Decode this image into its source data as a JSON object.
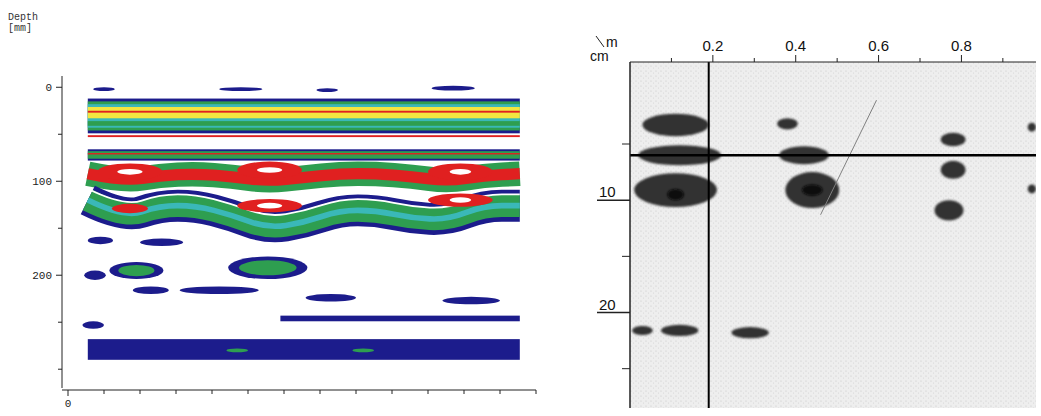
{
  "chart_data": [
    {
      "type": "radargram",
      "y_label": "Depth [mm]",
      "xlim": [
        0,
        13
      ],
      "xticks": [
        0
      ],
      "x_minor_ticks": [
        1,
        2,
        3,
        4,
        5,
        6,
        7,
        8,
        9,
        10,
        11,
        12,
        13
      ],
      "ylim": [
        -12,
        320
      ],
      "yticks": [
        0,
        100,
        200
      ],
      "y_minor_ticks": [
        50,
        150,
        250,
        300
      ],
      "bands": [
        {
          "x0": 0.55,
          "x1": 12.55,
          "top": 12,
          "bottom": 49,
          "color": "#1c1c8c"
        },
        {
          "x0": 0.55,
          "x1": 12.55,
          "top": 15,
          "bottom": 46,
          "color": "#2e9e50"
        },
        {
          "x0": 0.55,
          "x1": 12.55,
          "top": 18,
          "bottom": 43,
          "color": "#3ab8b8"
        },
        {
          "x0": 0.55,
          "x1": 12.55,
          "top": 21,
          "bottom": 33,
          "color": "#f2e640"
        },
        {
          "x0": 0.55,
          "x1": 12.55,
          "top": 25,
          "bottom": 27,
          "color": "#e02020"
        },
        {
          "x0": 0.55,
          "x1": 12.55,
          "top": 36,
          "bottom": 41,
          "color": "#2e9e50"
        },
        {
          "x0": 0.55,
          "x1": 12.55,
          "top": 51,
          "bottom": 53,
          "color": "#e02020"
        },
        {
          "x0": 0.55,
          "x1": 12.55,
          "top": 66,
          "bottom": 78,
          "color": "#1c1c8c"
        },
        {
          "x0": 0.55,
          "x1": 12.55,
          "top": 68,
          "bottom": 76,
          "color": "#2e9e50"
        },
        {
          "x0": 0.55,
          "x1": 12.55,
          "top": 70,
          "bottom": 71.5,
          "color": "#e02020"
        },
        {
          "x0": 5.9,
          "x1": 12.55,
          "top": 243,
          "bottom": 249,
          "color": "#1c1c8c"
        },
        {
          "x0": 0.55,
          "x1": 12.55,
          "top": 268,
          "bottom": 290,
          "color": "#1c1c8c"
        }
      ],
      "horizons": [
        {
          "x": [
            0.55,
            1.55,
            2.55,
            3.55,
            4.55,
            5.55,
            6.55,
            7.55,
            8.55,
            9.55,
            10.55,
            11.55,
            12.55
          ],
          "depth": [
            92,
            100,
            94,
            92,
            95,
            100,
            96,
            92,
            92,
            95,
            100,
            94,
            92
          ],
          "thickness": 26,
          "color": "#2e9e50"
        },
        {
          "x": [
            0.55,
            1.55,
            2.55,
            3.55,
            4.55,
            5.55,
            6.55,
            7.55,
            8.55,
            9.55,
            10.55,
            11.55,
            12.55
          ],
          "depth": [
            120,
            139,
            126,
            126,
            136,
            150,
            144,
            131,
            131,
            139,
            141,
            126,
            126
          ],
          "thickness": 34,
          "color": "#1c1c8c"
        },
        {
          "x": [
            0.55,
            1.55,
            2.55,
            3.55,
            4.55,
            5.55,
            6.55,
            7.55,
            8.55,
            9.55,
            10.55,
            11.55,
            12.55
          ],
          "depth": [
            120,
            139,
            126,
            126,
            136,
            150,
            144,
            131,
            131,
            139,
            141,
            126,
            126
          ],
          "thickness": 24,
          "color": "#2e9e50"
        },
        {
          "x": [
            0.55,
            1.55,
            2.55,
            3.55,
            4.55,
            5.55,
            6.55,
            7.55,
            8.55,
            9.55,
            10.55,
            11.55,
            12.55
          ],
          "depth": [
            120,
            139,
            126,
            126,
            136,
            150,
            144,
            131,
            131,
            139,
            141,
            126,
            126
          ],
          "thickness": 6,
          "color": "#3ab8b8"
        },
        {
          "x": [
            0.55,
            1.55,
            2.55,
            3.55,
            4.55,
            5.55,
            6.55,
            7.55,
            8.55,
            9.55,
            10.55,
            11.55,
            12.55
          ],
          "depth": [
            92,
            100,
            94,
            92,
            95,
            100,
            96,
            92,
            92,
            95,
            100,
            94,
            92
          ],
          "thickness": 12,
          "color": "#e02020"
        },
        {
          "x": [
            0.55,
            1.55,
            2.55,
            3.55,
            4.55,
            5.55,
            6.55,
            7.55,
            8.55,
            9.55,
            10.55,
            11.55,
            12.55
          ],
          "depth": [
            108,
            127,
            114,
            114,
            124,
            138,
            132,
            119,
            119,
            127,
            129,
            114,
            114
          ],
          "thickness": 2,
          "color": "#ffffff"
        }
      ],
      "reflections": [
        {
          "x": 1.72,
          "depth": 90,
          "rx": 0.9,
          "ry": 9,
          "color": "#e02020"
        },
        {
          "x": 5.6,
          "depth": 88,
          "rx": 0.9,
          "ry": 9,
          "color": "#e02020"
        },
        {
          "x": 10.9,
          "depth": 90,
          "rx": 0.9,
          "ry": 9,
          "color": "#e02020"
        },
        {
          "x": 1.72,
          "depth": 129,
          "rx": 0.5,
          "ry": 5,
          "color": "#e02020"
        },
        {
          "x": 5.6,
          "depth": 126,
          "rx": 0.9,
          "ry": 7,
          "color": "#e02020"
        },
        {
          "x": 10.9,
          "depth": 120,
          "rx": 0.9,
          "ry": 7,
          "color": "#e02020"
        },
        {
          "x": 1.72,
          "depth": 90,
          "rx": 0.35,
          "ry": 3,
          "color": "#ffffff"
        },
        {
          "x": 5.6,
          "depth": 88,
          "rx": 0.35,
          "ry": 3,
          "color": "#ffffff"
        },
        {
          "x": 10.9,
          "depth": 90,
          "rx": 0.3,
          "ry": 3,
          "color": "#ffffff"
        },
        {
          "x": 5.6,
          "depth": 126,
          "rx": 0.35,
          "ry": 3,
          "color": "#ffffff"
        },
        {
          "x": 10.9,
          "depth": 120,
          "rx": 0.3,
          "ry": 3,
          "color": "#ffffff"
        },
        {
          "x": 1.9,
          "depth": 195,
          "rx": 0.75,
          "ry": 9,
          "color": "#1c1c8c"
        },
        {
          "x": 1.9,
          "depth": 195,
          "rx": 0.5,
          "ry": 6,
          "color": "#2e9e50"
        },
        {
          "x": 5.55,
          "depth": 192,
          "rx": 1.1,
          "ry": 12,
          "color": "#1c1c8c"
        },
        {
          "x": 5.55,
          "depth": 192,
          "rx": 0.8,
          "ry": 8,
          "color": "#2e9e50"
        },
        {
          "x": 0.9,
          "depth": 163,
          "rx": 0.35,
          "ry": 4,
          "color": "#1c1c8c"
        },
        {
          "x": 2.6,
          "depth": 165,
          "rx": 0.6,
          "ry": 4,
          "color": "#1c1c8c"
        },
        {
          "x": 0.75,
          "depth": 200,
          "rx": 0.3,
          "ry": 5,
          "color": "#1c1c8c"
        },
        {
          "x": 2.3,
          "depth": 216,
          "rx": 0.5,
          "ry": 4,
          "color": "#1c1c8c"
        },
        {
          "x": 4.2,
          "depth": 216,
          "rx": 1.1,
          "ry": 4,
          "color": "#1c1c8c"
        },
        {
          "x": 7.3,
          "depth": 224,
          "rx": 0.7,
          "ry": 4,
          "color": "#1c1c8c"
        },
        {
          "x": 11.2,
          "depth": 227,
          "rx": 0.8,
          "ry": 4,
          "color": "#1c1c8c"
        },
        {
          "x": 0.7,
          "depth": 253,
          "rx": 0.3,
          "ry": 4,
          "color": "#1c1c8c"
        },
        {
          "x": 1.0,
          "depth": 2,
          "rx": 0.3,
          "ry": 2,
          "color": "#1c1c8c"
        },
        {
          "x": 4.8,
          "depth": 2,
          "rx": 0.6,
          "ry": 2,
          "color": "#1c1c8c"
        },
        {
          "x": 7.2,
          "depth": 3,
          "rx": 0.3,
          "ry": 2,
          "color": "#1c1c8c"
        },
        {
          "x": 10.7,
          "depth": 1,
          "rx": 0.6,
          "ry": 2.5,
          "color": "#1c1c8c"
        },
        {
          "x": 4.7,
          "depth": 280,
          "rx": 0.3,
          "ry": 2,
          "color": "#2e9e50"
        },
        {
          "x": 8.2,
          "depth": 280,
          "rx": 0.3,
          "ry": 2,
          "color": "#2e9e50"
        }
      ]
    },
    {
      "type": "radargram",
      "x_unit_label": "m",
      "y_unit_label": "cm",
      "xlim": [
        0,
        0.98
      ],
      "xticks": [
        0.2,
        0.4,
        0.6,
        0.8
      ],
      "x_minor_ticks": [
        0.1,
        0.3,
        0.5,
        0.7,
        0.9
      ],
      "ylim": [
        -2.3,
        28.5
      ],
      "yticks": [
        10,
        20
      ],
      "y_minor_ticks": [
        5,
        15,
        25
      ],
      "cursor": {
        "x": 0.19,
        "depth": 6.0
      },
      "lines": [
        {
          "x": [
            0.46,
            0.595
          ],
          "depth": [
            11.3,
            1.1
          ]
        }
      ],
      "reflections": [
        {
          "x": 0.11,
          "depth": 3.3,
          "rx": 0.08,
          "ry": 1.0,
          "color": "#303030"
        },
        {
          "x": 0.12,
          "depth": 6.0,
          "rx": 0.1,
          "ry": 0.9,
          "color": "#303030"
        },
        {
          "x": 0.11,
          "depth": 9.1,
          "rx": 0.1,
          "ry": 1.5,
          "color": "#303030"
        },
        {
          "x": 0.38,
          "depth": 3.2,
          "rx": 0.025,
          "ry": 0.5,
          "color": "#303030"
        },
        {
          "x": 0.42,
          "depth": 6.0,
          "rx": 0.06,
          "ry": 0.8,
          "color": "#303030"
        },
        {
          "x": 0.44,
          "depth": 9.1,
          "rx": 0.065,
          "ry": 1.6,
          "color": "#303030"
        },
        {
          "x": 0.78,
          "depth": 4.6,
          "rx": 0.03,
          "ry": 0.6,
          "color": "#303030"
        },
        {
          "x": 0.78,
          "depth": 7.3,
          "rx": 0.03,
          "ry": 0.8,
          "color": "#303030"
        },
        {
          "x": 0.77,
          "depth": 10.9,
          "rx": 0.035,
          "ry": 0.9,
          "color": "#303030"
        },
        {
          "x": 0.97,
          "depth": 3.5,
          "rx": 0.01,
          "ry": 0.4,
          "color": "#303030"
        },
        {
          "x": 0.97,
          "depth": 9.0,
          "rx": 0.01,
          "ry": 0.4,
          "color": "#303030"
        },
        {
          "x": 0.03,
          "depth": 21.6,
          "rx": 0.025,
          "ry": 0.4,
          "color": "#303030"
        },
        {
          "x": 0.12,
          "depth": 21.6,
          "rx": 0.045,
          "ry": 0.5,
          "color": "#303030"
        },
        {
          "x": 0.29,
          "depth": 21.8,
          "rx": 0.045,
          "ry": 0.5,
          "color": "#303030"
        },
        {
          "x": 0.44,
          "depth": 9.1,
          "rx": 0.025,
          "ry": 0.5,
          "color": "#0a0a0a"
        },
        {
          "x": 0.11,
          "depth": 9.5,
          "rx": 0.02,
          "ry": 0.5,
          "color": "#0a0a0a"
        }
      ]
    }
  ]
}
